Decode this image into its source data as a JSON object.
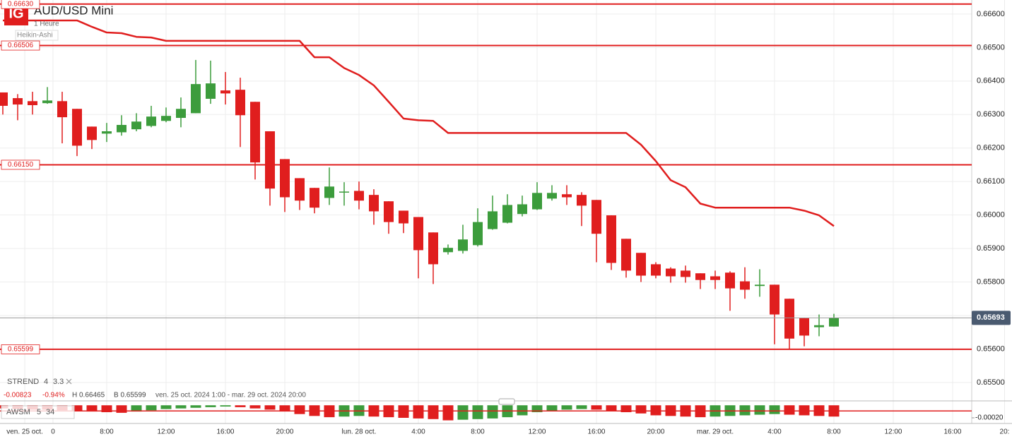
{
  "chart_data": {
    "type": "candlestick",
    "logo": "IG",
    "title": "AUD/USD Mini",
    "interval": "1 Heure",
    "style": "Heikin-Ashi",
    "up_color": "#3c9c3c",
    "down_color": "#e01e1e",
    "ylim": [
      0.65445,
      0.66642
    ],
    "yticks": [
      {
        "value": 0.666,
        "label": "0.66600"
      },
      {
        "value": 0.665,
        "label": "0.66500"
      },
      {
        "value": 0.664,
        "label": "0.66400"
      },
      {
        "value": 0.663,
        "label": "0.66300"
      },
      {
        "value": 0.662,
        "label": "0.66200"
      },
      {
        "value": 0.661,
        "label": "0.66100"
      },
      {
        "value": 0.66,
        "label": "0.66000"
      },
      {
        "value": 0.659,
        "label": "0.65900"
      },
      {
        "value": 0.658,
        "label": "0.65800"
      },
      {
        "value": 0.657,
        "label": "0.65700"
      },
      {
        "value": 0.656,
        "label": "0.65600"
      },
      {
        "value": 0.655,
        "label": "0.65500"
      }
    ],
    "xlim": [
      -0.19,
      68
    ],
    "xticks": [
      {
        "value": 1.48,
        "label": "ven. 25 oct."
      },
      {
        "value": 3.38,
        "label": "0"
      },
      {
        "value": 7,
        "label": "8:00"
      },
      {
        "value": 11,
        "label": "12:00"
      },
      {
        "value": 15,
        "label": "16:00"
      },
      {
        "value": 19,
        "label": "20:00"
      },
      {
        "value": 24,
        "label": "lun. 28 oct."
      },
      {
        "value": 28,
        "label": "4:00"
      },
      {
        "value": 32,
        "label": "8:00"
      },
      {
        "value": 36,
        "label": "12:00"
      },
      {
        "value": 40,
        "label": "16:00"
      },
      {
        "value": 44,
        "label": "20:00"
      },
      {
        "value": 48,
        "label": "mar. 29 oct."
      },
      {
        "value": 52,
        "label": "4:00"
      },
      {
        "value": 56,
        "label": "8:00"
      },
      {
        "value": 60,
        "label": "12:00"
      },
      {
        "value": 64,
        "label": "16:00"
      },
      {
        "value": 67.5,
        "label": "20:"
      }
    ],
    "grid": true,
    "ohlc": [
      [
        0.66366,
        0.66366,
        0.663,
        0.66326
      ],
      [
        0.66349,
        0.66361,
        0.66283,
        0.6633
      ],
      [
        0.6634,
        0.66368,
        0.663,
        0.66328
      ],
      [
        0.66334,
        0.66382,
        0.66332,
        0.66342
      ],
      [
        0.6634,
        0.66368,
        0.66214,
        0.66292
      ],
      [
        0.66317,
        0.66317,
        0.66176,
        0.66207
      ],
      [
        0.66264,
        0.66264,
        0.66197,
        0.66224
      ],
      [
        0.66243,
        0.66275,
        0.66218,
        0.6625
      ],
      [
        0.66247,
        0.66298,
        0.66237,
        0.66269
      ],
      [
        0.66256,
        0.66304,
        0.6625,
        0.66279
      ],
      [
        0.66266,
        0.66326,
        0.66262,
        0.66294
      ],
      [
        0.66281,
        0.66321,
        0.66277,
        0.66296
      ],
      [
        0.6629,
        0.66351,
        0.66262,
        0.66317
      ],
      [
        0.66304,
        0.66463,
        0.66304,
        0.66391
      ],
      [
        0.66347,
        0.66461,
        0.66332,
        0.66393
      ],
      [
        0.66372,
        0.66427,
        0.6633,
        0.66363
      ],
      [
        0.66374,
        0.6641,
        0.66203,
        0.66298
      ],
      [
        0.66338,
        0.66338,
        0.66106,
        0.66157
      ],
      [
        0.6625,
        0.6625,
        0.66028,
        0.66079
      ],
      [
        0.66167,
        0.66167,
        0.66009,
        0.66053
      ],
      [
        0.6611,
        0.6611,
        0.66015,
        0.66043
      ],
      [
        0.66081,
        0.66081,
        0.66005,
        0.66022
      ],
      [
        0.66051,
        0.66142,
        0.6603,
        0.66085
      ],
      [
        0.66068,
        0.66098,
        0.66028,
        0.6607
      ],
      [
        0.66072,
        0.661,
        0.66017,
        0.66043
      ],
      [
        0.6606,
        0.66077,
        0.65971,
        0.66011
      ],
      [
        0.66041,
        0.66041,
        0.65944,
        0.65979
      ],
      [
        0.66013,
        0.66013,
        0.65946,
        0.65975
      ],
      [
        0.65994,
        0.65994,
        0.65811,
        0.65895
      ],
      [
        0.65948,
        0.65948,
        0.65794,
        0.65853
      ],
      [
        0.65889,
        0.65912,
        0.65882,
        0.65902
      ],
      [
        0.65893,
        0.65971,
        0.65885,
        0.65927
      ],
      [
        0.6591,
        0.6602,
        0.65906,
        0.65979
      ],
      [
        0.65958,
        0.66058,
        0.65956,
        0.66011
      ],
      [
        0.65977,
        0.66062,
        0.65975,
        0.6603
      ],
      [
        0.66003,
        0.66058,
        0.65996,
        0.66032
      ],
      [
        0.66017,
        0.66098,
        0.66015,
        0.66066
      ],
      [
        0.66049,
        0.66089,
        0.66043,
        0.66066
      ],
      [
        0.66062,
        0.66089,
        0.6603,
        0.66053
      ],
      [
        0.6606,
        0.66068,
        0.65967,
        0.66028
      ],
      [
        0.66045,
        0.66045,
        0.65859,
        0.65944
      ],
      [
        0.65999,
        0.65999,
        0.65836,
        0.65857
      ],
      [
        0.65929,
        0.65929,
        0.65813,
        0.65834
      ],
      [
        0.65887,
        0.65887,
        0.658,
        0.65819
      ],
      [
        0.65853,
        0.65859,
        0.65811,
        0.65819
      ],
      [
        0.6584,
        0.65844,
        0.65798,
        0.65817
      ],
      [
        0.65834,
        0.65849,
        0.65798,
        0.65815
      ],
      [
        0.65826,
        0.65826,
        0.65779,
        0.65806
      ],
      [
        0.65817,
        0.65834,
        0.65779,
        0.65806
      ],
      [
        0.65828,
        0.65832,
        0.65714,
        0.65781
      ],
      [
        0.65802,
        0.65844,
        0.6575,
        0.65777
      ],
      [
        0.65788,
        0.65838,
        0.65756,
        0.65792
      ],
      [
        0.65792,
        0.65792,
        0.65614,
        0.65703
      ],
      [
        0.6575,
        0.6575,
        0.656,
        0.65631
      ],
      [
        0.65692,
        0.65692,
        0.65608,
        0.6564
      ],
      [
        0.65665,
        0.65703,
        0.65638,
        0.65671
      ],
      [
        0.65667,
        0.65705,
        0.65667,
        0.65693
      ]
    ],
    "indicator": {
      "name": "STREND",
      "params": [
        4,
        3.3
      ],
      "color": "#e01e1e",
      "values": [
        0.66581,
        0.66581,
        0.66581,
        0.66581,
        0.66581,
        0.66581,
        0.66562,
        0.66545,
        0.66543,
        0.66532,
        0.6653,
        0.6652,
        0.6652,
        0.6652,
        0.6652,
        0.6652,
        0.6652,
        0.6652,
        0.6652,
        0.6652,
        0.6652,
        0.66471,
        0.66471,
        0.66439,
        0.66418,
        0.66387,
        0.66338,
        0.66288,
        0.66283,
        0.66281,
        0.66245,
        0.66245,
        0.66245,
        0.66245,
        0.66245,
        0.66245,
        0.66245,
        0.66245,
        0.66245,
        0.66245,
        0.66245,
        0.66245,
        0.66245,
        0.6621,
        0.66161,
        0.66104,
        0.66083,
        0.66034,
        0.66022,
        0.66022,
        0.66022,
        0.66022,
        0.66022,
        0.66022,
        0.66013,
        0.65999,
        0.65967
      ]
    },
    "levels": [
      {
        "value": 0.6663,
        "label": "0.66630"
      },
      {
        "value": 0.66506,
        "label": "0.66506"
      },
      {
        "value": 0.6615,
        "label": "0.66150"
      },
      {
        "value": 0.65599,
        "label": "0.65599"
      }
    ],
    "level_color": "#e01e1e",
    "current_price": {
      "value": 0.65693,
      "label": "0.65693"
    },
    "info": {
      "change": -0.00823,
      "change_pct": "-0.94%",
      "high": "H 0.66465",
      "low": "B 0.65599",
      "range": "ven. 25 oct. 2024 1:00 - mar. 29 oct. 2024 20:00"
    },
    "awsm": {
      "name": "AWSM",
      "params": [
        5,
        34
      ],
      "ylim": [
        -0.00029,
        7e-05
      ],
      "yticks": [
        {
          "value": -0.0002,
          "label": "-0.00020"
        }
      ],
      "level": -9e-05,
      "values": [
        -5e-05,
        -6e-05,
        -7e-05,
        -7e-05,
        -8e-05,
        -9e-05,
        -0.0001,
        -0.00011,
        -0.00012,
        -0.0001,
        -8e-05,
        -6e-05,
        -5e-05,
        -4e-05,
        -3e-05,
        -2e-05,
        -3e-05,
        -5e-05,
        -7e-05,
        -0.0001,
        -0.00014,
        -0.00017,
        -0.00019,
        -0.00018,
        -0.00017,
        -0.00018,
        -0.00019,
        -0.0002,
        -0.00021,
        -0.00022,
        -0.00024,
        -0.00023,
        -0.00022,
        -0.00021,
        -0.00019,
        -0.00016,
        -0.00011,
        -9e-05,
        -7e-05,
        -6e-05,
        -7e-05,
        -9e-05,
        -0.00011,
        -0.00013,
        -0.00016,
        -0.00017,
        -0.00018,
        -0.00019,
        -0.00018,
        -0.00017,
        -0.00016,
        -0.00015,
        -0.00014,
        -0.00015,
        -0.00016,
        -0.00017,
        -0.00018
      ]
    }
  }
}
